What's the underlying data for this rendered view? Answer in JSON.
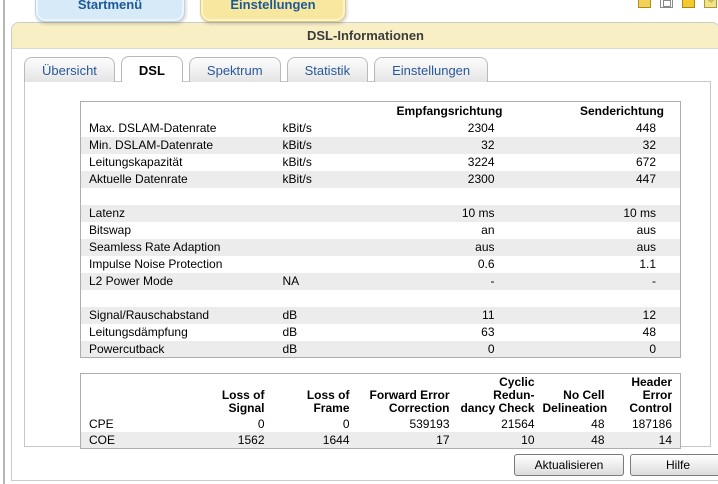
{
  "top_nav": {
    "tabs": [
      {
        "label": "Startmenü"
      },
      {
        "label": "Einstellungen"
      }
    ],
    "icons": [
      "print-icon",
      "new-window-icon",
      "bookmark-icon",
      "mail-icon"
    ]
  },
  "window": {
    "title": "DSL-Informationen"
  },
  "inner_tabs": [
    {
      "label": "Übersicht",
      "active": false
    },
    {
      "label": "DSL",
      "active": true
    },
    {
      "label": "Spektrum",
      "active": false
    },
    {
      "label": "Statistik",
      "active": false
    },
    {
      "label": "Einstellungen",
      "active": false
    }
  ],
  "dsl_table": {
    "col_rx": "Empfangsrichtung",
    "col_tx": "Senderichtung",
    "rows": [
      {
        "label": "Max. DSLAM-Datenrate",
        "unit": "kBit/s",
        "rx": "2304",
        "tx": "448"
      },
      {
        "label": "Min. DSLAM-Datenrate",
        "unit": "kBit/s",
        "rx": "32",
        "tx": "32"
      },
      {
        "label": "Leitungskapazität",
        "unit": "kBit/s",
        "rx": "3224",
        "tx": "672"
      },
      {
        "label": "Aktuelle Datenrate",
        "unit": "kBit/s",
        "rx": "2300",
        "tx": "447"
      },
      {
        "spacer": true
      },
      {
        "label": "Latenz",
        "unit": "",
        "rx": "10 ms",
        "tx": "10 ms"
      },
      {
        "label": "Bitswap",
        "unit": "",
        "rx": "an",
        "tx": "aus"
      },
      {
        "label": "Seamless Rate Adaption",
        "unit": "",
        "rx": "aus",
        "tx": "aus"
      },
      {
        "label": "Impulse Noise Protection",
        "unit": "",
        "rx": "0.6",
        "tx": "1.1"
      },
      {
        "label": "L2 Power Mode",
        "unit": "NA",
        "rx": "-",
        "tx": "-"
      },
      {
        "spacer": true
      },
      {
        "label": "Signal/Rauschabstand",
        "unit": "dB",
        "rx": "11",
        "tx": "12"
      },
      {
        "label": "Leitungsdämpfung",
        "unit": "dB",
        "rx": "63",
        "tx": "48"
      },
      {
        "label": "Powercutback",
        "unit": "dB",
        "rx": "0",
        "tx": "0"
      }
    ]
  },
  "error_table": {
    "headers": [
      [
        "Loss of",
        "Signal"
      ],
      [
        "Loss of",
        "Frame"
      ],
      [
        "Forward Error",
        "Correction"
      ],
      [
        "Cyclic Redun-",
        "dancy Check"
      ],
      [
        "No Cell",
        "Delineation"
      ],
      [
        "Header Error",
        "Control"
      ]
    ],
    "rows": [
      {
        "label": "CPE",
        "values": [
          "0",
          "0",
          "539193",
          "21564",
          "48",
          "187186"
        ]
      },
      {
        "label": "COE",
        "values": [
          "1562",
          "1644",
          "17",
          "10",
          "48",
          "14"
        ]
      }
    ]
  },
  "buttons": [
    {
      "label": "Aktualisieren"
    },
    {
      "label": "Hilfe"
    }
  ]
}
